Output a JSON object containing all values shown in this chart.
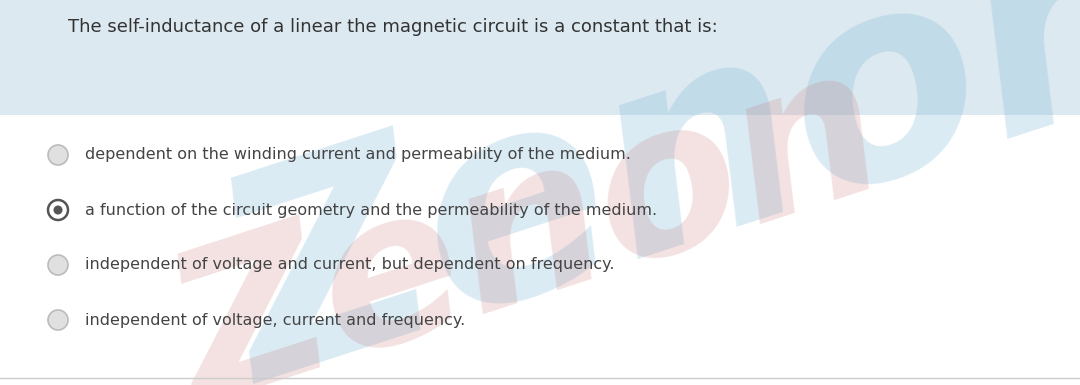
{
  "title": "The self-inductance of a linear the magnetic circuit is a constant that is:",
  "options": [
    "dependent on the winding current and permeability of the medium.",
    "a function of the circuit geometry and the permeability of the medium.",
    "independent of voltage and current, but dependent on frequency.",
    "independent of voltage, current and frequency."
  ],
  "correct_index": 1,
  "bg_color": "#ffffff",
  "banner_color": "#dce9f0",
  "text_color": "#444444",
  "title_color": "#333333",
  "radio_empty_fill": "#e0e0e0",
  "radio_empty_edge": "#bbbbbb",
  "radio_filled_fill": "#555555",
  "radio_filled_edge": "#555555",
  "watermark_color_blue": "#7ab8d8",
  "watermark_color_red": "#c87070",
  "title_fontsize": 13,
  "option_fontsize": 11.5,
  "fig_width": 10.8,
  "fig_height": 3.85
}
